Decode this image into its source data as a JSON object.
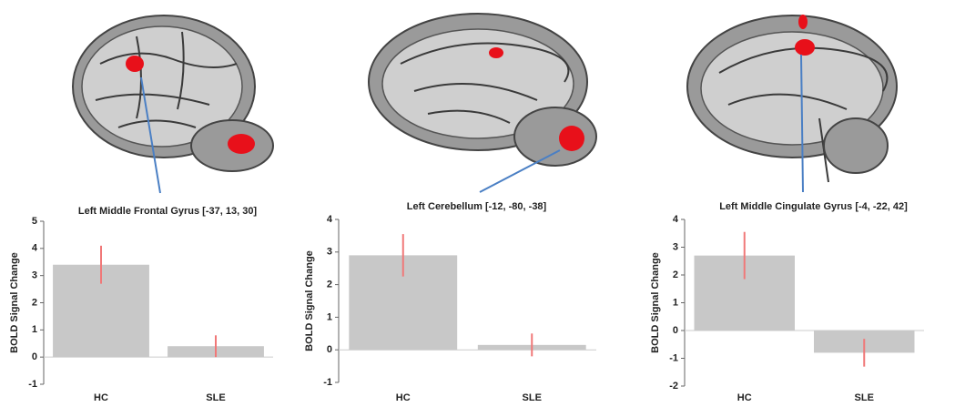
{
  "chart_data": [
    {
      "type": "bar",
      "title": "Left Middle Frontal Gyrus [-37, 13, 30]",
      "y_label": "BOLD Signal Change",
      "categories": [
        "HC",
        "SLE"
      ],
      "values": [
        3.4,
        0.4
      ],
      "errors": [
        0.7,
        0.4
      ],
      "color": "#c8c8c8",
      "error_color": "#f07878",
      "ylim": [
        -1,
        5
      ],
      "yticks": [
        -1,
        0,
        1,
        2,
        3,
        4,
        5
      ]
    },
    {
      "type": "bar",
      "title": "Left Cerebellum [-12, -80, -38]",
      "y_label": "BOLD Signal Change",
      "categories": [
        "HC",
        "SLE"
      ],
      "values": [
        2.9,
        0.15
      ],
      "errors": [
        0.65,
        0.35
      ],
      "color": "#c8c8c8",
      "error_color": "#f07878",
      "ylim": [
        -1,
        4
      ],
      "yticks": [
        -1,
        0,
        1,
        2,
        3,
        4
      ]
    },
    {
      "type": "bar",
      "title": "Left Middle Cingulate Gyrus [-4, -22, 42]",
      "y_label": "BOLD Signal Change",
      "categories": [
        "HC",
        "SLE"
      ],
      "values": [
        2.7,
        -0.8
      ],
      "errors": [
        0.85,
        0.5
      ],
      "color": "#c8c8c8",
      "error_color": "#f07878",
      "ylim": [
        -2,
        4
      ],
      "yticks": [
        -2,
        -1,
        0,
        1,
        2,
        3,
        4
      ]
    }
  ]
}
